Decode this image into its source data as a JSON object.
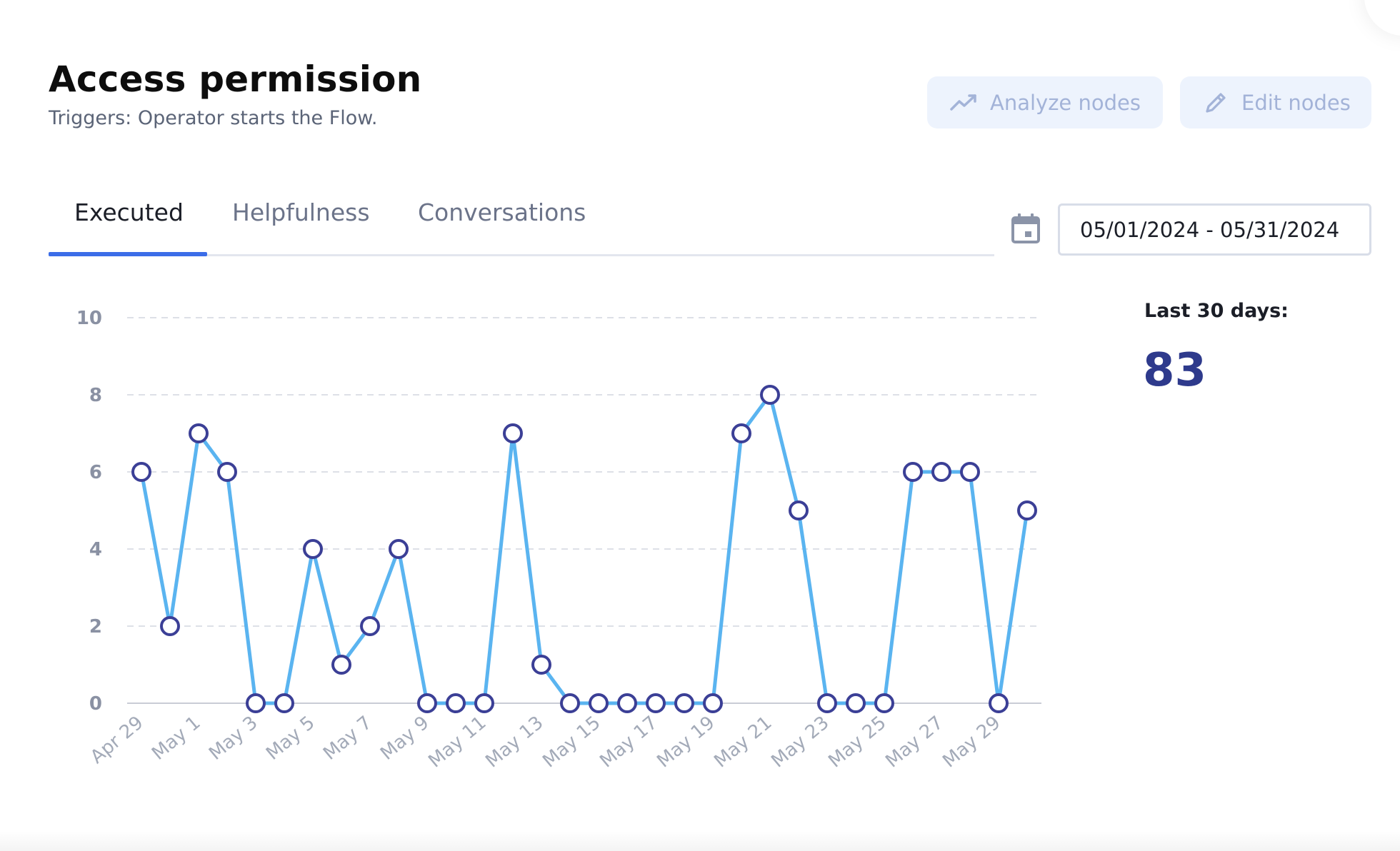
{
  "header": {
    "title": "Access permission",
    "subtitle": "Triggers: Operator starts the Flow.",
    "analyze_label": "Analyze nodes",
    "edit_label": "Edit nodes"
  },
  "tabs": [
    {
      "label": "Executed",
      "active": true
    },
    {
      "label": "Helpfulness",
      "active": false
    },
    {
      "label": "Conversations",
      "active": false
    }
  ],
  "date_range": "05/01/2024 - 05/31/2024",
  "summary": {
    "label": "Last 30 days:",
    "value": "83"
  },
  "icons": {
    "analyze": "trend-line-icon",
    "edit": "pencil-icon",
    "date": "calendar-icon"
  },
  "colors": {
    "accent": "#3b6de8",
    "line": "#5ab4f0",
    "marker_stroke": "#3b3f96",
    "value": "#2e3a8c",
    "button_bg": "#edf3fd",
    "button_text": "#a3b3d8"
  },
  "chart_data": {
    "type": "line",
    "ylim": [
      0,
      10
    ],
    "y_ticks": [
      "0",
      "2",
      "4",
      "6",
      "8",
      "10"
    ],
    "x_tick_labels": [
      "Apr 29",
      "May 1",
      "May 3",
      "May 5",
      "May 7",
      "May 9",
      "May 11",
      "May 13",
      "May 15",
      "May 17",
      "May 19",
      "May 21",
      "May 23",
      "May 25",
      "May 27",
      "May 29"
    ],
    "x": [
      "Apr 29",
      "Apr 30",
      "May 1",
      "May 2",
      "May 3",
      "May 4",
      "May 5",
      "May 6",
      "May 7",
      "May 8",
      "May 9",
      "May 10",
      "May 11",
      "May 12",
      "May 13",
      "May 14",
      "May 15",
      "May 16",
      "May 17",
      "May 18",
      "May 19",
      "May 20",
      "May 21",
      "May 22",
      "May 23",
      "May 24",
      "May 25",
      "May 26",
      "May 27",
      "May 28",
      "May 29",
      "May 30"
    ],
    "values": [
      6,
      2,
      7,
      6,
      0,
      0,
      4,
      1,
      2,
      4,
      0,
      0,
      0,
      7,
      1,
      0,
      0,
      0,
      0,
      0,
      0,
      7,
      8,
      5,
      0,
      0,
      0,
      6,
      6,
      6,
      0,
      5
    ],
    "grid": true
  }
}
